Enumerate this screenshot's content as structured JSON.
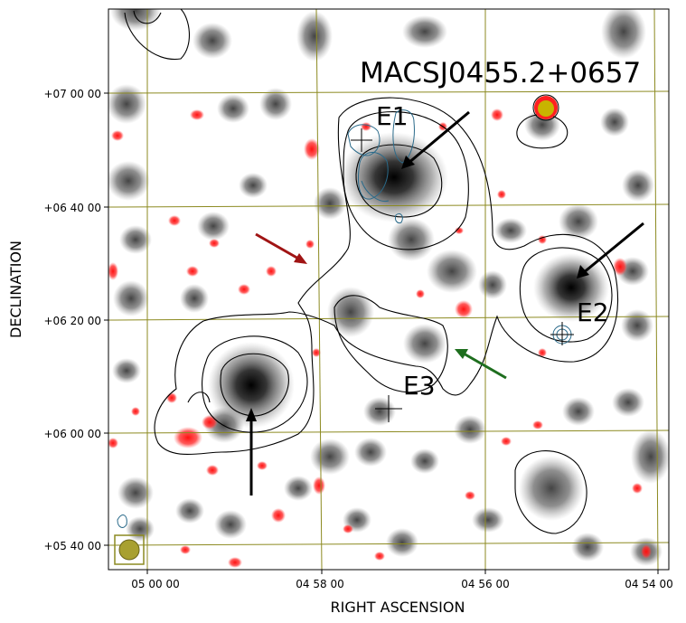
{
  "figure": {
    "title": "MACSJ0455.2+0657",
    "xlabel": "RIGHT ASCENSION",
    "ylabel": "DECLINATION",
    "x_ticks": [
      "05 00 00",
      "04 58 00",
      "04 56 00",
      "04 54 00"
    ],
    "y_ticks": [
      "+07 00 00",
      "+06 40 00",
      "+06 20 00",
      "+06 00 00",
      "+05 40 00"
    ],
    "sources": [
      "E1",
      "E2",
      "E3"
    ]
  },
  "colors": {
    "grid": "#8c8a20",
    "contour_black": "#000000",
    "contour_blue": "#2a6a8a",
    "red_emission": "#ff2020",
    "gray_emission": "#555555",
    "arrow_black": "#000000",
    "arrow_red": "#a01414",
    "arrow_green": "#1e6e1e",
    "beam_fill": "#a8a030"
  }
}
